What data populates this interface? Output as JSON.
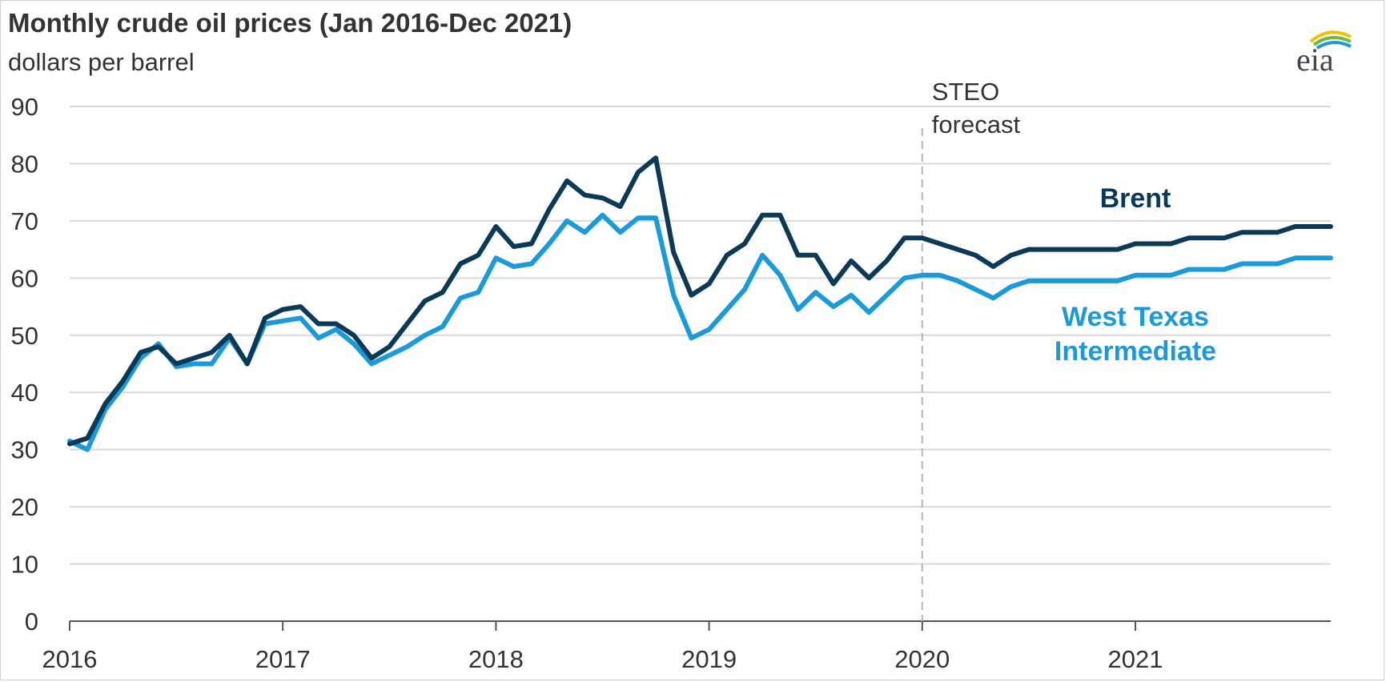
{
  "chart_data": {
    "type": "line",
    "title": "Monthly crude oil prices (Jan 2016-Dec 2021)",
    "subtitle": "dollars per barrel",
    "logo_text": "eia",
    "ylim": [
      0,
      90
    ],
    "yticks": [
      "0",
      "10",
      "20",
      "30",
      "40",
      "50",
      "60",
      "70",
      "80",
      "90"
    ],
    "xlim": [
      "2016-01",
      "2021-12"
    ],
    "xticks": [
      "2016",
      "2017",
      "2018",
      "2019",
      "2020",
      "2021"
    ],
    "grid": true,
    "forecast_start": "2020-01",
    "forecast_label_line1": "STEO",
    "forecast_label_line2": "forecast",
    "series": [
      {
        "name": "Brent",
        "color": "#0b3a57",
        "label_lines": [
          "Brent"
        ],
        "values": [
          31,
          32,
          38,
          42,
          47,
          48,
          45,
          46,
          47,
          50,
          45,
          53,
          54.5,
          55,
          52,
          52,
          50,
          46,
          48,
          52,
          56,
          57.5,
          62.5,
          64,
          69,
          65.5,
          66,
          72,
          77,
          74.5,
          74,
          72.5,
          78.5,
          81,
          64.5,
          57,
          59,
          64,
          66,
          71,
          71,
          64,
          64,
          59,
          63,
          60,
          63,
          67,
          67,
          66,
          65,
          64,
          62,
          64,
          65,
          65,
          65,
          65,
          65,
          65,
          66,
          66,
          66,
          67,
          67,
          67,
          68,
          68,
          68,
          69,
          69,
          69
        ]
      },
      {
        "name": "West Texas Intermediate",
        "color": "#1a9ad8",
        "label_lines": [
          "West Texas",
          "Intermediate"
        ],
        "values": [
          31.5,
          30,
          37,
          41,
          46,
          48.5,
          44.5,
          45,
          45,
          49.5,
          45,
          52,
          52.5,
          53,
          49.5,
          51,
          48.5,
          45,
          46.5,
          48,
          50,
          51.5,
          56.5,
          57.5,
          63.5,
          62,
          62.5,
          66,
          70,
          68,
          71,
          68,
          70.5,
          70.5,
          57,
          49.5,
          51,
          54.5,
          58,
          64,
          60.5,
          54.5,
          57.5,
          55,
          57,
          54,
          57,
          60,
          60.5,
          60.5,
          59.5,
          58,
          56.5,
          58.5,
          59.5,
          59.5,
          59.5,
          59.5,
          59.5,
          59.5,
          60.5,
          60.5,
          60.5,
          61.5,
          61.5,
          61.5,
          62.5,
          62.5,
          62.5,
          63.5,
          63.5,
          63.5
        ]
      }
    ]
  }
}
